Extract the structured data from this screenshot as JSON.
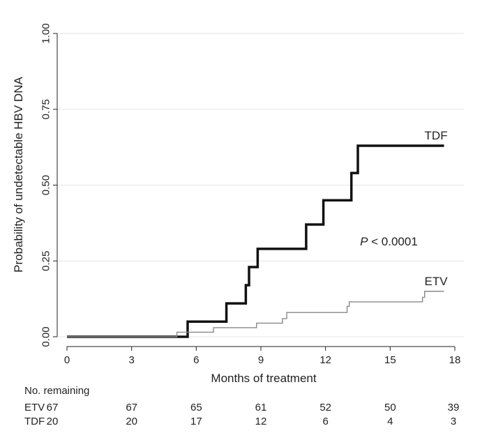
{
  "chart_data": {
    "type": "line",
    "title": "",
    "xlabel": "Months of treatment",
    "ylabel": "Probability of undetectable HBV DNA",
    "xlim": [
      0,
      18
    ],
    "ylim": [
      0,
      1
    ],
    "xticks": [
      "0",
      "3",
      "6",
      "9",
      "12",
      "15",
      "18"
    ],
    "yticks": [
      "0.00",
      "0.25",
      "0.50",
      "0.75",
      "1.00"
    ],
    "grid": true,
    "step": true,
    "series": [
      {
        "name": "TDF",
        "label": "TDF",
        "color": "#111111",
        "x": [
          0,
          5.6,
          7.4,
          8.3,
          8.45,
          8.85,
          11.1,
          11.9,
          13.2,
          13.5,
          17.5
        ],
        "y": [
          0,
          0.05,
          0.11,
          0.17,
          0.23,
          0.29,
          0.37,
          0.45,
          0.54,
          0.63,
          0.63
        ]
      },
      {
        "name": "ETV",
        "label": "ETV",
        "color": "#888888",
        "x": [
          0,
          5.1,
          5.5,
          6.8,
          8.8,
          10.0,
          10.2,
          13.0,
          13.1,
          16.5,
          16.6,
          17.5
        ],
        "y": [
          0,
          0.015,
          0.015,
          0.03,
          0.045,
          0.06,
          0.08,
          0.1,
          0.115,
          0.13,
          0.15,
          0.15
        ]
      }
    ],
    "annotations": [
      {
        "text_italic": "P",
        "text": " < 0.0001",
        "x": 13.6,
        "y": 0.315
      }
    ]
  },
  "risk_table": {
    "title": "No. remaining",
    "columns": [
      0,
      3,
      6,
      9,
      12,
      15,
      18
    ],
    "rows": [
      {
        "label": "ETV",
        "values": [
          "67",
          "67",
          "65",
          "61",
          "52",
          "50",
          "39"
        ]
      },
      {
        "label": "TDF",
        "values": [
          "20",
          "20",
          "17",
          "12",
          "6",
          "4",
          "3"
        ]
      }
    ]
  }
}
